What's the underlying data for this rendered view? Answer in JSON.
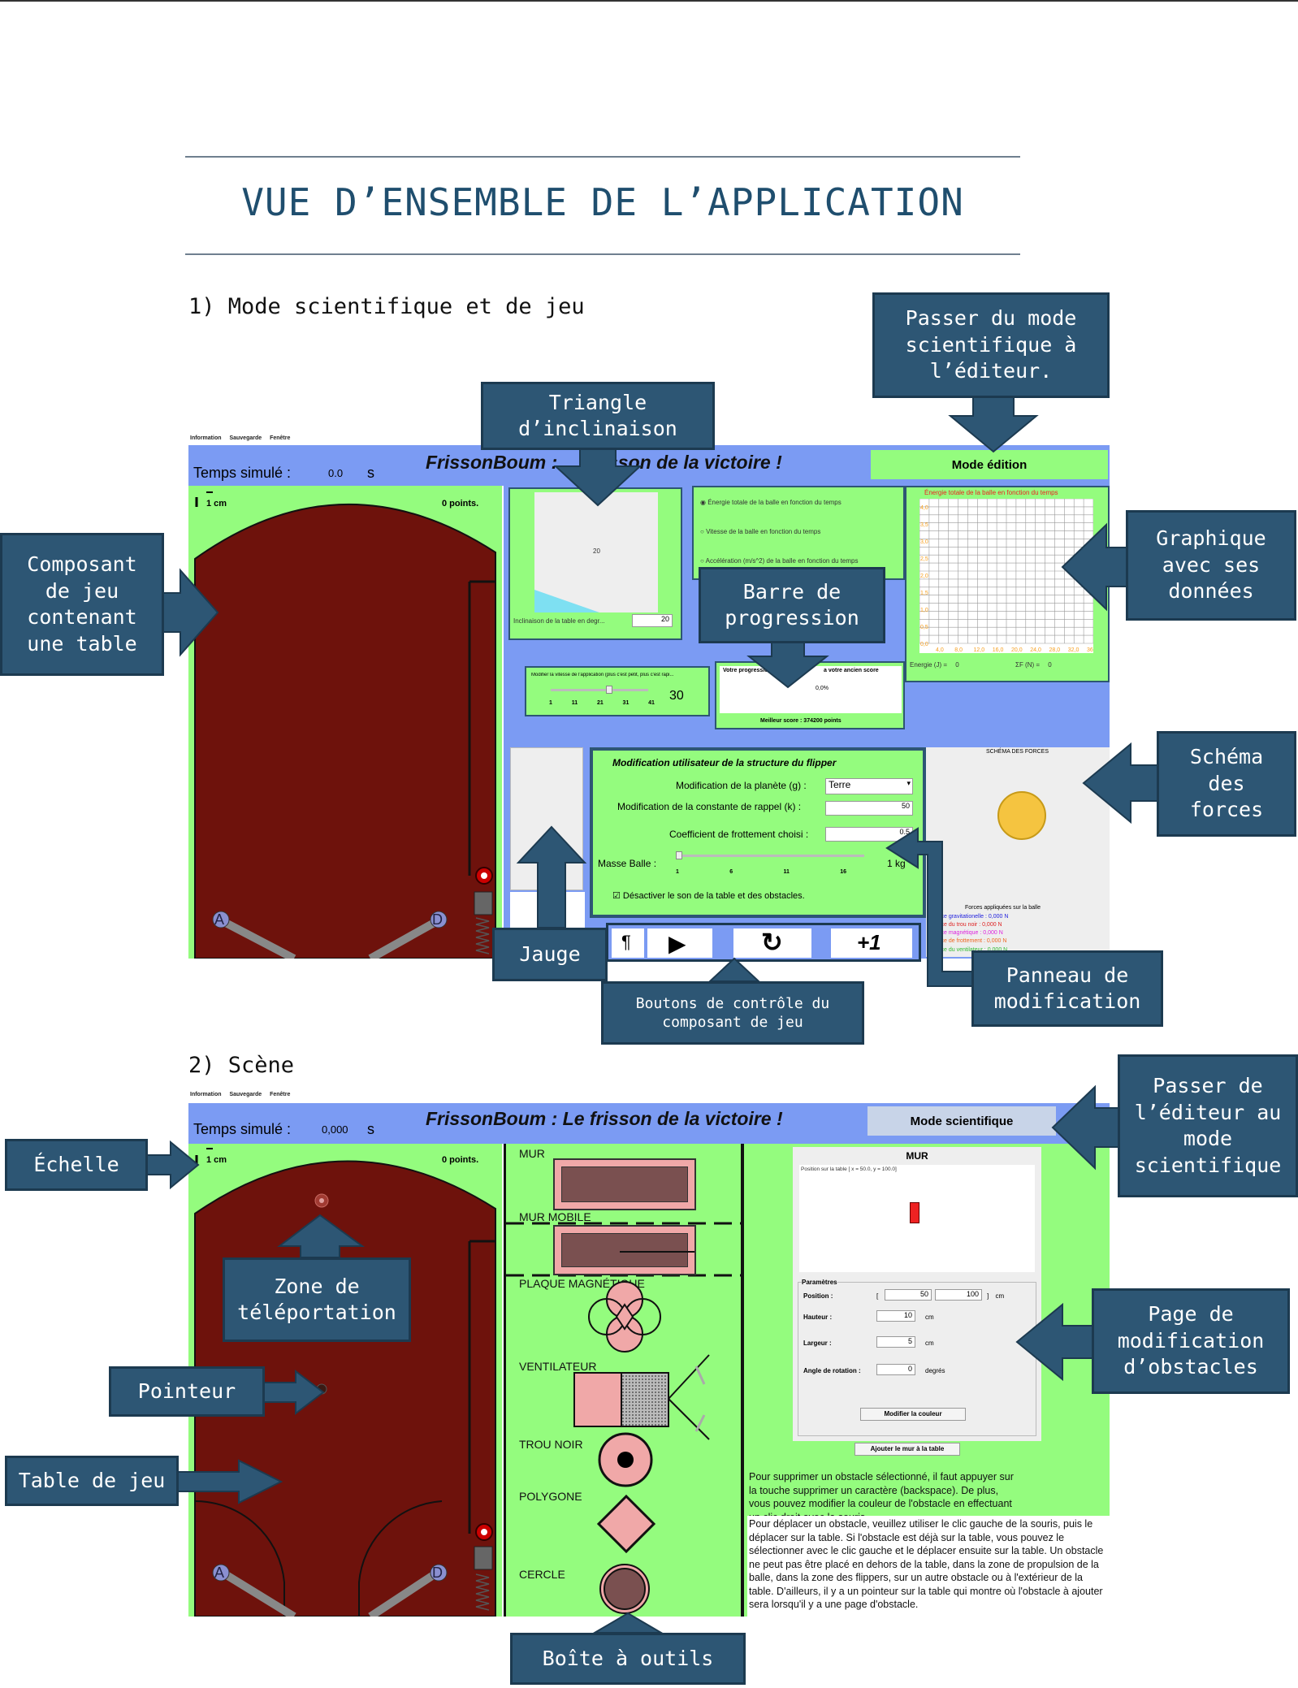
{
  "document": {
    "title": "VUE D’ENSEMBLE DE L’APPLICATION",
    "section1": "1) Mode scientifique et de jeu",
    "section2": "2) Scène"
  },
  "callouts": {
    "passer_editeur": "Passer du mode\nscientifique à\nl’éditeur.",
    "triangle": "Triangle\nd’inclinaison",
    "composant_jeu": "Composant\nde jeu\ncontenant\nune table",
    "graphique": "Graphique\navec ses\ndonnées",
    "barre_progression": "Barre de\nprogression",
    "schema_forces": "Schéma\ndes\nforces",
    "jauge": "Jauge",
    "panneau_modif": "Panneau de\nmodification",
    "boutons_controle": "Boutons de contrôle du\ncomposant de jeu",
    "passer_scientifique": "Passer de\nl’éditeur au\nmode\nscientifique",
    "echelle": "Échelle",
    "zone_teleport": "Zone de\ntéléportation",
    "pointeur": "Pointeur",
    "table_jeu": "Table de jeu",
    "page_obstacles": "Page de\nmodification\nd’obstacles",
    "boite_outils": "Boîte à outils"
  },
  "app": {
    "menu": [
      "Information",
      "Sauvegarde",
      "Fenêtre"
    ],
    "title": "FrissonBoum : Le frisson de la victoire !",
    "title_partial": "FrissonBoum : ",
    "title_partial2": "risson de la victoire !",
    "timer_label": "Temps simulé :",
    "timer_unit": "s",
    "scale": "1 cm",
    "points": "0 points.",
    "flipper_left": "A",
    "flipper_right": "D",
    "colors": {
      "top": "#7b9bf3",
      "panel": "#94fc7e",
      "table": "#6e120c"
    }
  },
  "scientific": {
    "timer_value": "0.0",
    "mode_button": "Mode édition",
    "incline_value": "20",
    "incline_label": "Inclinaison de la table en degr...",
    "incline_input": "20",
    "graph_options": [
      "Énergie totale de la balle en fonction du temps",
      "Vitesse de la balle en fonction du temps",
      "Accélération (m/s^2) de la balle en fonction du temps"
    ],
    "graph_title": "Énergie totale de la balle en fonction du temps",
    "graph_y_ticks": [
      "4,0",
      "3,5",
      "3,0",
      "2,5",
      "2,0",
      "1,5",
      "1,0",
      "0,5",
      "0,0"
    ],
    "graph_x_ticks": [
      "4,0",
      "8,0",
      "12,0",
      "16,0",
      "20,0",
      "24,0",
      "28,0",
      "32,0",
      "36,0"
    ],
    "energy_label": "Energie (J) =",
    "energy_value": "0",
    "force_label": "ΣF (N) =",
    "force_value": "0",
    "speed_label": "Modifier la vitesse de l'application (plus c'est petit, plus c'est rapi...",
    "speed_ticks": [
      "1",
      "11",
      "21",
      "31",
      "41"
    ],
    "speed_value": "30",
    "progress_label": "Votre progression",
    "progress_label2": "a votre ancien score",
    "progress_value": "0,0%",
    "best_score": "Meilleur score :  374200 points",
    "modif_title": "Modification utilisateur de la structure du flipper",
    "planet_label": "Modification de la planète (g) :",
    "planet_value": "Terre",
    "spring_label": "Modification de la constante de rappel (k) :",
    "spring_value": "50",
    "friction_label": "Coefficient de frottement choisi :",
    "friction_value": "0.5",
    "mass_label": "Masse Balle :",
    "mass_ticks": [
      "1",
      "6",
      "11",
      "16"
    ],
    "mass_value": "1 kg",
    "sound_label": "Désactiver le son de la table et des obstacles.",
    "forces_title": "SCHÉMA DES FORCES",
    "forces_applied": "Forces appliquées sur la balle",
    "forces": [
      {
        "label": "Force gravitationelle : 0,000 N",
        "color": "#2222dd"
      },
      {
        "label": "Force du trou noir : 0,000 N",
        "color": "#dd2222"
      },
      {
        "label": "Force magnétique : 0,000 N",
        "color": "#dd22dd"
      },
      {
        "label": "Force de frottement : 0,000 N",
        "color": "#ee6622"
      },
      {
        "label": "Force du ventilateur : 0,000 N",
        "color": "#33bb33"
      }
    ],
    "control_plus": "+1"
  },
  "editor": {
    "timer_value": "0,000",
    "mode_button": "Mode scientifique",
    "tools": [
      "MUR",
      "MUR MOBILE",
      "PLAQUE MAGNÉTIQUE",
      "VENTILATEUR",
      "TROU NOIR",
      "POLYGONE",
      "CERCLE"
    ],
    "obstacle_title": "MUR",
    "position_caption": "Position sur la table [ x = 50.0, y = 100.0]",
    "params_title": "Paramètres",
    "position_label": "Position :",
    "position_x": "50",
    "position_y": "100",
    "unit_cm": "cm",
    "height_label": "Hauteur :",
    "height_value": "10",
    "width_label": "Largeur :",
    "width_value": "5",
    "angle_label": "Angle de rotation :",
    "angle_value": "0",
    "unit_deg": "degrés",
    "color_button": "Modifier la couleur",
    "add_button": "Ajouter le mur à la table",
    "help1": "Pour supprimer un obstacle sélectionné, il faut appuyer sur la touche supprimer un caractère (backspace). De plus, vous pouvez modifier la couleur de l'obstacle en effectuant un clic droit avec la souris.",
    "help2": "Pour déplacer un obstacle, veuillez utiliser le clic gauche de la souris, puis le déplacer sur la table. Si l'obstacle est déjà sur la table, vous pouvez le sélectionner avec le clic gauche et le déplacer ensuite sur la table. Un obstacle ne peut pas être placé en dehors de la table, dans la zone de propulsion de la balle, dans la zone des flippers, sur un autre obstacle ou à l'extérieur de la table. D'ailleurs, il y a un pointeur sur la table qui montre où l'obstacle à ajouter sera lorsqu'il y a une page d'obstacle."
  }
}
